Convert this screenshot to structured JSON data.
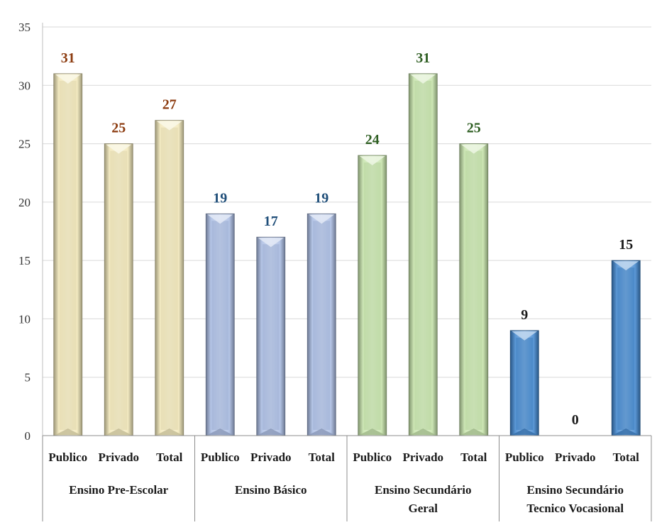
{
  "chart_data": {
    "type": "bar",
    "ylim": [
      0,
      35
    ],
    "yticks": [
      0,
      5,
      10,
      15,
      20,
      25,
      30,
      35
    ],
    "grid": true,
    "groups": [
      {
        "label_lines": [
          "Ensino  Pre-Escolar"
        ],
        "color": "#F2E8B8",
        "label_color": "#8B3A0E",
        "bars": [
          {
            "label": "Publico",
            "value": 31
          },
          {
            "label": "Privado",
            "value": 25
          },
          {
            "label": "Total",
            "value": 27
          }
        ]
      },
      {
        "label_lines": [
          "Ensino  Básico"
        ],
        "color": "#A9BCE3",
        "label_color": "#1F4E79",
        "bars": [
          {
            "label": "Publico",
            "value": 19
          },
          {
            "label": "Privado",
            "value": 17
          },
          {
            "label": "Total",
            "value": 19
          }
        ]
      },
      {
        "label_lines": [
          "Ensino  Secundário",
          "Geral"
        ],
        "color": "#C5E3A9",
        "label_color": "#2E5E22",
        "bars": [
          {
            "label": "Publico",
            "value": 24
          },
          {
            "label": "Privado",
            "value": 31
          },
          {
            "label": "Total",
            "value": 25
          }
        ]
      },
      {
        "label_lines": [
          "Ensino  Secundário",
          "Tecnico Vocasional"
        ],
        "color": "#3F86CF",
        "label_color": "#1A1A1A",
        "bars": [
          {
            "label": "Publico",
            "value": 9
          },
          {
            "label": "Privado",
            "value": 0
          },
          {
            "label": "Total",
            "value": 15
          }
        ]
      }
    ]
  }
}
